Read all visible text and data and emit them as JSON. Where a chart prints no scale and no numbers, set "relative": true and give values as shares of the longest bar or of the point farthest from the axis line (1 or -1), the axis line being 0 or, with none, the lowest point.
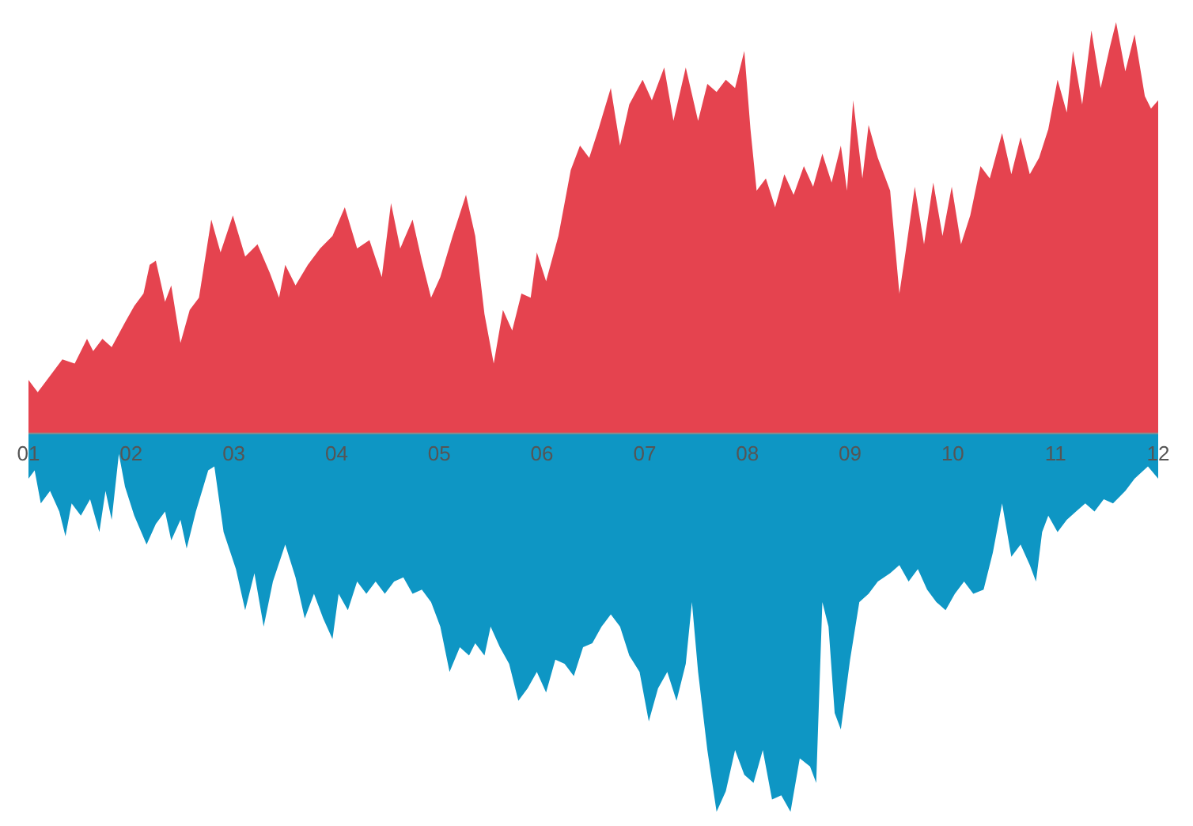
{
  "chart_data": {
    "type": "area",
    "relative": true,
    "xlim": [
      1,
      12
    ],
    "xticks": [
      {
        "value": 1,
        "label": "01"
      },
      {
        "value": 2,
        "label": "02"
      },
      {
        "value": 3,
        "label": "03"
      },
      {
        "value": 4,
        "label": "04"
      },
      {
        "value": 5,
        "label": "05"
      },
      {
        "value": 6,
        "label": "06"
      },
      {
        "value": 7,
        "label": "07"
      },
      {
        "value": 8,
        "label": "08"
      },
      {
        "value": 9,
        "label": "09"
      },
      {
        "value": 10,
        "label": "10"
      },
      {
        "value": 11,
        "label": "11"
      },
      {
        "value": 12,
        "label": "12"
      }
    ],
    "series": [
      {
        "color": "#e5434f",
        "x": [
          1.0,
          1.09,
          1.21,
          1.33,
          1.45,
          1.57,
          1.63,
          1.72,
          1.81,
          1.94,
          2.03,
          2.12,
          2.18,
          2.24,
          2.33,
          2.39,
          2.48,
          2.57,
          2.66,
          2.78,
          2.87,
          2.99,
          3.11,
          3.23,
          3.35,
          3.44,
          3.5,
          3.6,
          3.72,
          3.84,
          3.96,
          4.08,
          4.2,
          4.32,
          4.44,
          4.53,
          4.62,
          4.74,
          4.83,
          4.92,
          5.01,
          5.13,
          5.26,
          5.35,
          5.44,
          5.53,
          5.62,
          5.71,
          5.8,
          5.89,
          5.95,
          6.04,
          6.16,
          6.28,
          6.37,
          6.46,
          6.55,
          6.67,
          6.76,
          6.85,
          6.98,
          7.07,
          7.19,
          7.28,
          7.4,
          7.52,
          7.61,
          7.7,
          7.79,
          7.88,
          7.97,
          8.03,
          8.09,
          8.18,
          8.27,
          8.36,
          8.45,
          8.55,
          8.64,
          8.73,
          8.82,
          8.91,
          8.97,
          9.03,
          9.12,
          9.18,
          9.27,
          9.39,
          9.48,
          9.54,
          9.63,
          9.72,
          9.81,
          9.9,
          9.99,
          10.08,
          10.17,
          10.27,
          10.36,
          10.48,
          10.57,
          10.66,
          10.75,
          10.84,
          10.93,
          11.02,
          11.11,
          11.17,
          11.26,
          11.35,
          11.44,
          11.53,
          11.59,
          11.68,
          11.77,
          11.87,
          11.93,
          12.0
        ],
        "values": [
          0.13,
          0.1,
          0.14,
          0.18,
          0.17,
          0.23,
          0.2,
          0.23,
          0.21,
          0.27,
          0.31,
          0.34,
          0.41,
          0.42,
          0.32,
          0.36,
          0.22,
          0.3,
          0.33,
          0.52,
          0.44,
          0.53,
          0.43,
          0.46,
          0.39,
          0.33,
          0.41,
          0.36,
          0.41,
          0.45,
          0.48,
          0.55,
          0.45,
          0.47,
          0.38,
          0.56,
          0.45,
          0.52,
          0.42,
          0.33,
          0.38,
          0.48,
          0.58,
          0.48,
          0.29,
          0.17,
          0.3,
          0.25,
          0.34,
          0.33,
          0.44,
          0.37,
          0.48,
          0.64,
          0.7,
          0.67,
          0.74,
          0.84,
          0.7,
          0.8,
          0.86,
          0.81,
          0.89,
          0.76,
          0.89,
          0.76,
          0.85,
          0.83,
          0.86,
          0.84,
          0.93,
          0.74,
          0.59,
          0.62,
          0.55,
          0.63,
          0.58,
          0.65,
          0.6,
          0.68,
          0.61,
          0.7,
          0.59,
          0.81,
          0.62,
          0.75,
          0.67,
          0.59,
          0.34,
          0.44,
          0.6,
          0.46,
          0.61,
          0.48,
          0.6,
          0.46,
          0.53,
          0.65,
          0.62,
          0.73,
          0.63,
          0.72,
          0.63,
          0.67,
          0.74,
          0.86,
          0.78,
          0.93,
          0.8,
          0.98,
          0.84,
          0.94,
          1,
          0.88,
          0.97,
          0.82,
          0.79,
          0.81
        ]
      },
      {
        "color": "#0e96c4",
        "x": [
          1.0,
          1.06,
          1.12,
          1.21,
          1.3,
          1.36,
          1.42,
          1.51,
          1.6,
          1.69,
          1.75,
          1.81,
          1.88,
          1.94,
          2.03,
          2.15,
          2.24,
          2.33,
          2.39,
          2.48,
          2.54,
          2.63,
          2.75,
          2.81,
          2.9,
          3.02,
          3.11,
          3.2,
          3.29,
          3.38,
          3.5,
          3.6,
          3.69,
          3.78,
          3.87,
          3.96,
          4.02,
          4.11,
          4.2,
          4.29,
          4.38,
          4.47,
          4.56,
          4.65,
          4.74,
          4.83,
          4.92,
          5.01,
          5.1,
          5.2,
          5.29,
          5.35,
          5.44,
          5.5,
          5.59,
          5.68,
          5.77,
          5.86,
          5.95,
          6.04,
          6.13,
          6.22,
          6.31,
          6.4,
          6.49,
          6.58,
          6.67,
          6.76,
          6.85,
          6.95,
          7.04,
          7.13,
          7.22,
          7.31,
          7.4,
          7.46,
          7.52,
          7.61,
          7.7,
          7.79,
          7.88,
          7.97,
          8.06,
          8.15,
          8.24,
          8.33,
          8.42,
          8.51,
          8.61,
          8.67,
          8.73,
          8.79,
          8.85,
          8.91,
          9.0,
          9.09,
          9.18,
          9.27,
          9.39,
          9.48,
          9.57,
          9.66,
          9.75,
          9.84,
          9.93,
          10.02,
          10.11,
          10.2,
          10.3,
          10.39,
          10.48,
          10.57,
          10.66,
          10.75,
          10.81,
          10.87,
          10.93,
          11.02,
          11.11,
          11.2,
          11.29,
          11.38,
          11.47,
          11.56,
          11.68,
          11.77,
          11.9,
          12.0
        ],
        "values": [
          -0.11,
          -0.09,
          -0.17,
          -0.14,
          -0.19,
          -0.25,
          -0.17,
          -0.2,
          -0.16,
          -0.24,
          -0.14,
          -0.21,
          -0.05,
          -0.13,
          -0.2,
          -0.27,
          -0.22,
          -0.19,
          -0.26,
          -0.21,
          -0.28,
          -0.19,
          -0.09,
          -0.08,
          -0.24,
          -0.33,
          -0.43,
          -0.34,
          -0.47,
          -0.36,
          -0.27,
          -0.35,
          -0.45,
          -0.39,
          -0.45,
          -0.5,
          -0.39,
          -0.43,
          -0.36,
          -0.39,
          -0.36,
          -0.39,
          -0.36,
          -0.35,
          -0.39,
          -0.38,
          -0.41,
          -0.47,
          -0.58,
          -0.52,
          -0.54,
          -0.51,
          -0.54,
          -0.47,
          -0.52,
          -0.56,
          -0.65,
          -0.62,
          -0.58,
          -0.63,
          -0.55,
          -0.56,
          -0.59,
          -0.52,
          -0.51,
          -0.47,
          -0.44,
          -0.47,
          -0.54,
          -0.58,
          -0.7,
          -0.62,
          -0.58,
          -0.65,
          -0.56,
          -0.41,
          -0.58,
          -0.77,
          -0.92,
          -0.87,
          -0.77,
          -0.83,
          -0.85,
          -0.77,
          -0.89,
          -0.88,
          -0.92,
          -0.79,
          -0.81,
          -0.85,
          -0.41,
          -0.47,
          -0.68,
          -0.72,
          -0.55,
          -0.41,
          -0.39,
          -0.36,
          -0.34,
          -0.32,
          -0.36,
          -0.33,
          -0.38,
          -0.41,
          -0.43,
          -0.39,
          -0.36,
          -0.39,
          -0.38,
          -0.29,
          -0.17,
          -0.3,
          -0.27,
          -0.32,
          -0.36,
          -0.24,
          -0.2,
          -0.24,
          -0.21,
          -0.19,
          -0.17,
          -0.19,
          -0.16,
          -0.17,
          -0.14,
          -0.11,
          -0.08,
          -0.11
        ]
      }
    ]
  }
}
